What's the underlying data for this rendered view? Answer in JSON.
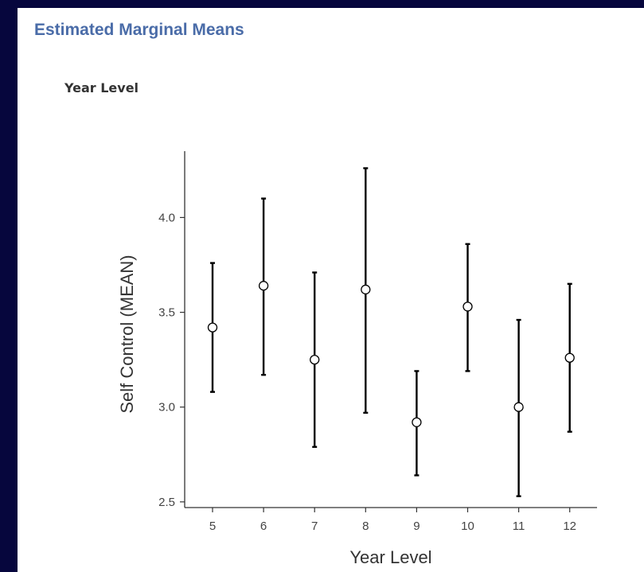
{
  "header": {
    "title": "Estimated Marginal Means",
    "subtitle": "Year Level"
  },
  "chart_data": {
    "type": "scatter",
    "subtype": "point-with-error-bars",
    "xlabel": "Year Level",
    "ylabel": "Self Control (MEAN)",
    "categories": [
      "5",
      "6",
      "7",
      "8",
      "9",
      "10",
      "11",
      "12"
    ],
    "values": [
      3.42,
      3.64,
      3.25,
      3.62,
      2.92,
      3.53,
      3.0,
      3.26
    ],
    "lower": [
      3.08,
      3.17,
      2.79,
      2.97,
      2.64,
      3.19,
      2.53,
      2.87
    ],
    "upper": [
      3.76,
      4.1,
      3.71,
      4.26,
      3.19,
      3.86,
      3.46,
      3.65
    ],
    "yticks": [
      "2.5",
      "3.0",
      "3.5",
      "4.0"
    ],
    "ylim": [
      2.47,
      4.35
    ],
    "grid": false,
    "legend": "none",
    "colors": {
      "marker_fill": "#ffffff",
      "marker_stroke": "#000000",
      "error_bar": "#000000",
      "axis": "#333333"
    }
  }
}
